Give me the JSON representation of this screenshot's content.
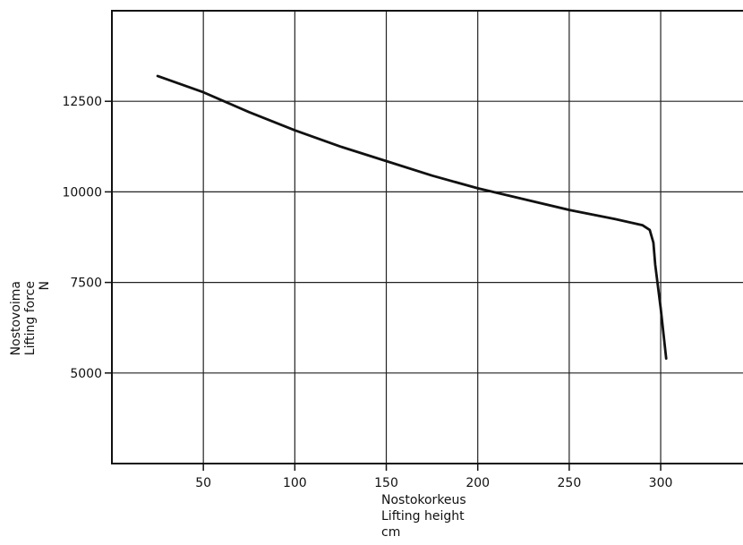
{
  "chart_data": {
    "type": "line",
    "title": "",
    "xlabel": [
      "Nostokorkeus",
      "Lifting height",
      "cm"
    ],
    "ylabel": [
      "Nostovoima",
      "Lifting force",
      "N"
    ],
    "xlim": [
      0,
      345
    ],
    "ylim": [
      2500,
      15000
    ],
    "xticks": [
      50,
      100,
      150,
      200,
      250,
      300
    ],
    "yticks": [
      5000,
      7500,
      10000,
      12500
    ],
    "xgrid": [
      50,
      100,
      150,
      200,
      250,
      300
    ],
    "ygrid": [
      5000,
      7500,
      10000,
      12500
    ],
    "grid": true,
    "legend": "none",
    "series": [
      {
        "x": [
          25,
          50,
          75,
          100,
          125,
          150,
          175,
          200,
          225,
          250,
          275,
          290,
          294,
          296,
          297,
          300,
          303
        ],
        "y": [
          13200,
          12750,
          12200,
          11700,
          11250,
          10850,
          10450,
          10100,
          9800,
          9500,
          9250,
          9080,
          8950,
          8600,
          8000,
          6800,
          5400
        ]
      }
    ]
  }
}
